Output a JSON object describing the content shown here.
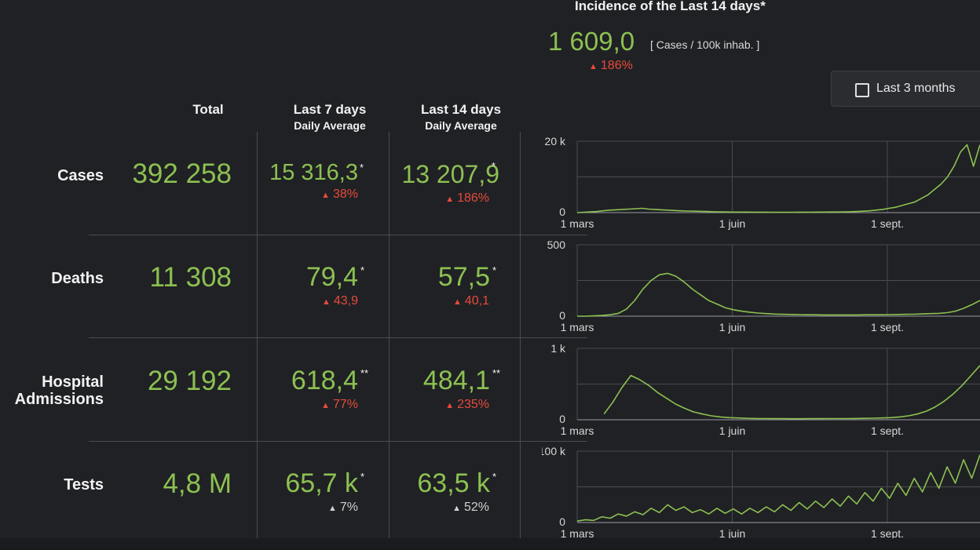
{
  "incidence": {
    "title": "Incidence of the Last 14 days*",
    "value": "1 609,0",
    "unit": "[ Cases / 100k inhab. ]",
    "change": "186%"
  },
  "filter": {
    "label": "Last 3 months",
    "checked": false
  },
  "columns": {
    "total": "Total",
    "last7": "Last 7 days",
    "last7_sub": "Daily Average",
    "last14": "Last 14 days",
    "last14_sub": "Daily Average"
  },
  "rows": [
    {
      "label": "Cases",
      "total": "392 258",
      "last7": "15 316,3",
      "last7_mark": "*",
      "last7_change": "38%",
      "last14": "13 207,9",
      "last14_mark": "*",
      "last14_change": "186%"
    },
    {
      "label": "Deaths",
      "total": "11 308",
      "last7": "79,4",
      "last7_mark": "*",
      "last7_change": "43,9",
      "last14": "57,5",
      "last14_mark": "*",
      "last14_change": "40,1"
    },
    {
      "label": "Hospital Admissions",
      "total": "29 192",
      "last7": "618,4",
      "last7_mark": "**",
      "last7_change": "77%",
      "last14": "484,1",
      "last14_mark": "**",
      "last14_change": "235%"
    },
    {
      "label": "Tests",
      "total": "4,8 M",
      "last7": "65,7 k",
      "last7_mark": "*",
      "last7_change": "7%",
      "last14": "63,5 k",
      "last14_mark": "*",
      "last14_change": "52%"
    }
  ],
  "colors": {
    "accent": "#8cc152",
    "increase": "#e84a3c",
    "neutral_change": "#d0d0d0",
    "background": "#202124",
    "grid": "#4a4c52"
  },
  "icons": {
    "change_arrow": "up-arrow-icon",
    "checkbox": "checkbox-icon"
  },
  "chart_data": [
    {
      "type": "line",
      "name": "cases-chart",
      "x_ticks": [
        "1 mars",
        "1 juin",
        "1 sept."
      ],
      "y_ticks": [
        "0",
        "20 k"
      ],
      "ylim": [
        0,
        20000
      ],
      "grid": true,
      "values": [
        0,
        100,
        200,
        300,
        500,
        700,
        800,
        900,
        1000,
        1100,
        1200,
        1000,
        900,
        800,
        700,
        600,
        500,
        450,
        400,
        350,
        300,
        250,
        200,
        180,
        160,
        150,
        150,
        140,
        130,
        130,
        120,
        120,
        120,
        120,
        130,
        130,
        140,
        150,
        160,
        170,
        180,
        200,
        250,
        300,
        400,
        500,
        700,
        900,
        1200,
        1500,
        2000,
        2500,
        3000,
        4000,
        5000,
        6500,
        8000,
        10000,
        13000,
        17000,
        19000,
        13000,
        19000
      ]
    },
    {
      "type": "line",
      "name": "deaths-chart",
      "x_ticks": [
        "1 mars",
        "1 juin",
        "1 sept."
      ],
      "y_ticks": [
        "0",
        "500"
      ],
      "ylim": [
        0,
        500
      ],
      "grid": true,
      "values": [
        0,
        0,
        2,
        5,
        10,
        20,
        50,
        110,
        190,
        250,
        290,
        300,
        280,
        240,
        190,
        150,
        110,
        85,
        60,
        45,
        35,
        28,
        22,
        18,
        15,
        13,
        12,
        11,
        10,
        10,
        9,
        9,
        9,
        9,
        9,
        10,
        10,
        10,
        11,
        12,
        13,
        14,
        16,
        18,
        20,
        25,
        35,
        55,
        80,
        110
      ]
    },
    {
      "type": "line",
      "name": "hospital-chart",
      "x_ticks": [
        "1 mars",
        "1 juin",
        "1 sept."
      ],
      "y_ticks": [
        "0",
        "1 k"
      ],
      "ylim": [
        0,
        1000
      ],
      "grid": true,
      "values": [
        null,
        null,
        null,
        80,
        250,
        450,
        620,
        560,
        480,
        380,
        300,
        220,
        160,
        110,
        80,
        55,
        40,
        30,
        25,
        20,
        18,
        16,
        15,
        15,
        14,
        14,
        15,
        15,
        16,
        16,
        17,
        18,
        20,
        22,
        25,
        30,
        40,
        55,
        80,
        120,
        180,
        260,
        360,
        480,
        620,
        760
      ]
    },
    {
      "type": "line",
      "name": "tests-chart",
      "x_ticks": [
        "1 mars",
        "1 juin",
        "1 sept."
      ],
      "y_ticks": [
        "0",
        "100 k"
      ],
      "ylim": [
        0,
        100000
      ],
      "grid": true,
      "values": [
        2000,
        4000,
        3000,
        8000,
        6000,
        12000,
        9000,
        15000,
        11000,
        20000,
        14000,
        25000,
        17000,
        22000,
        14000,
        18000,
        12000,
        20000,
        13000,
        19000,
        12000,
        20000,
        14000,
        22000,
        15000,
        25000,
        17000,
        28000,
        19000,
        30000,
        21000,
        33000,
        23000,
        37000,
        26000,
        42000,
        30000,
        48000,
        34000,
        55000,
        38000,
        62000,
        43000,
        70000,
        48000,
        78000,
        55000,
        88000,
        62000,
        95000
      ]
    }
  ]
}
